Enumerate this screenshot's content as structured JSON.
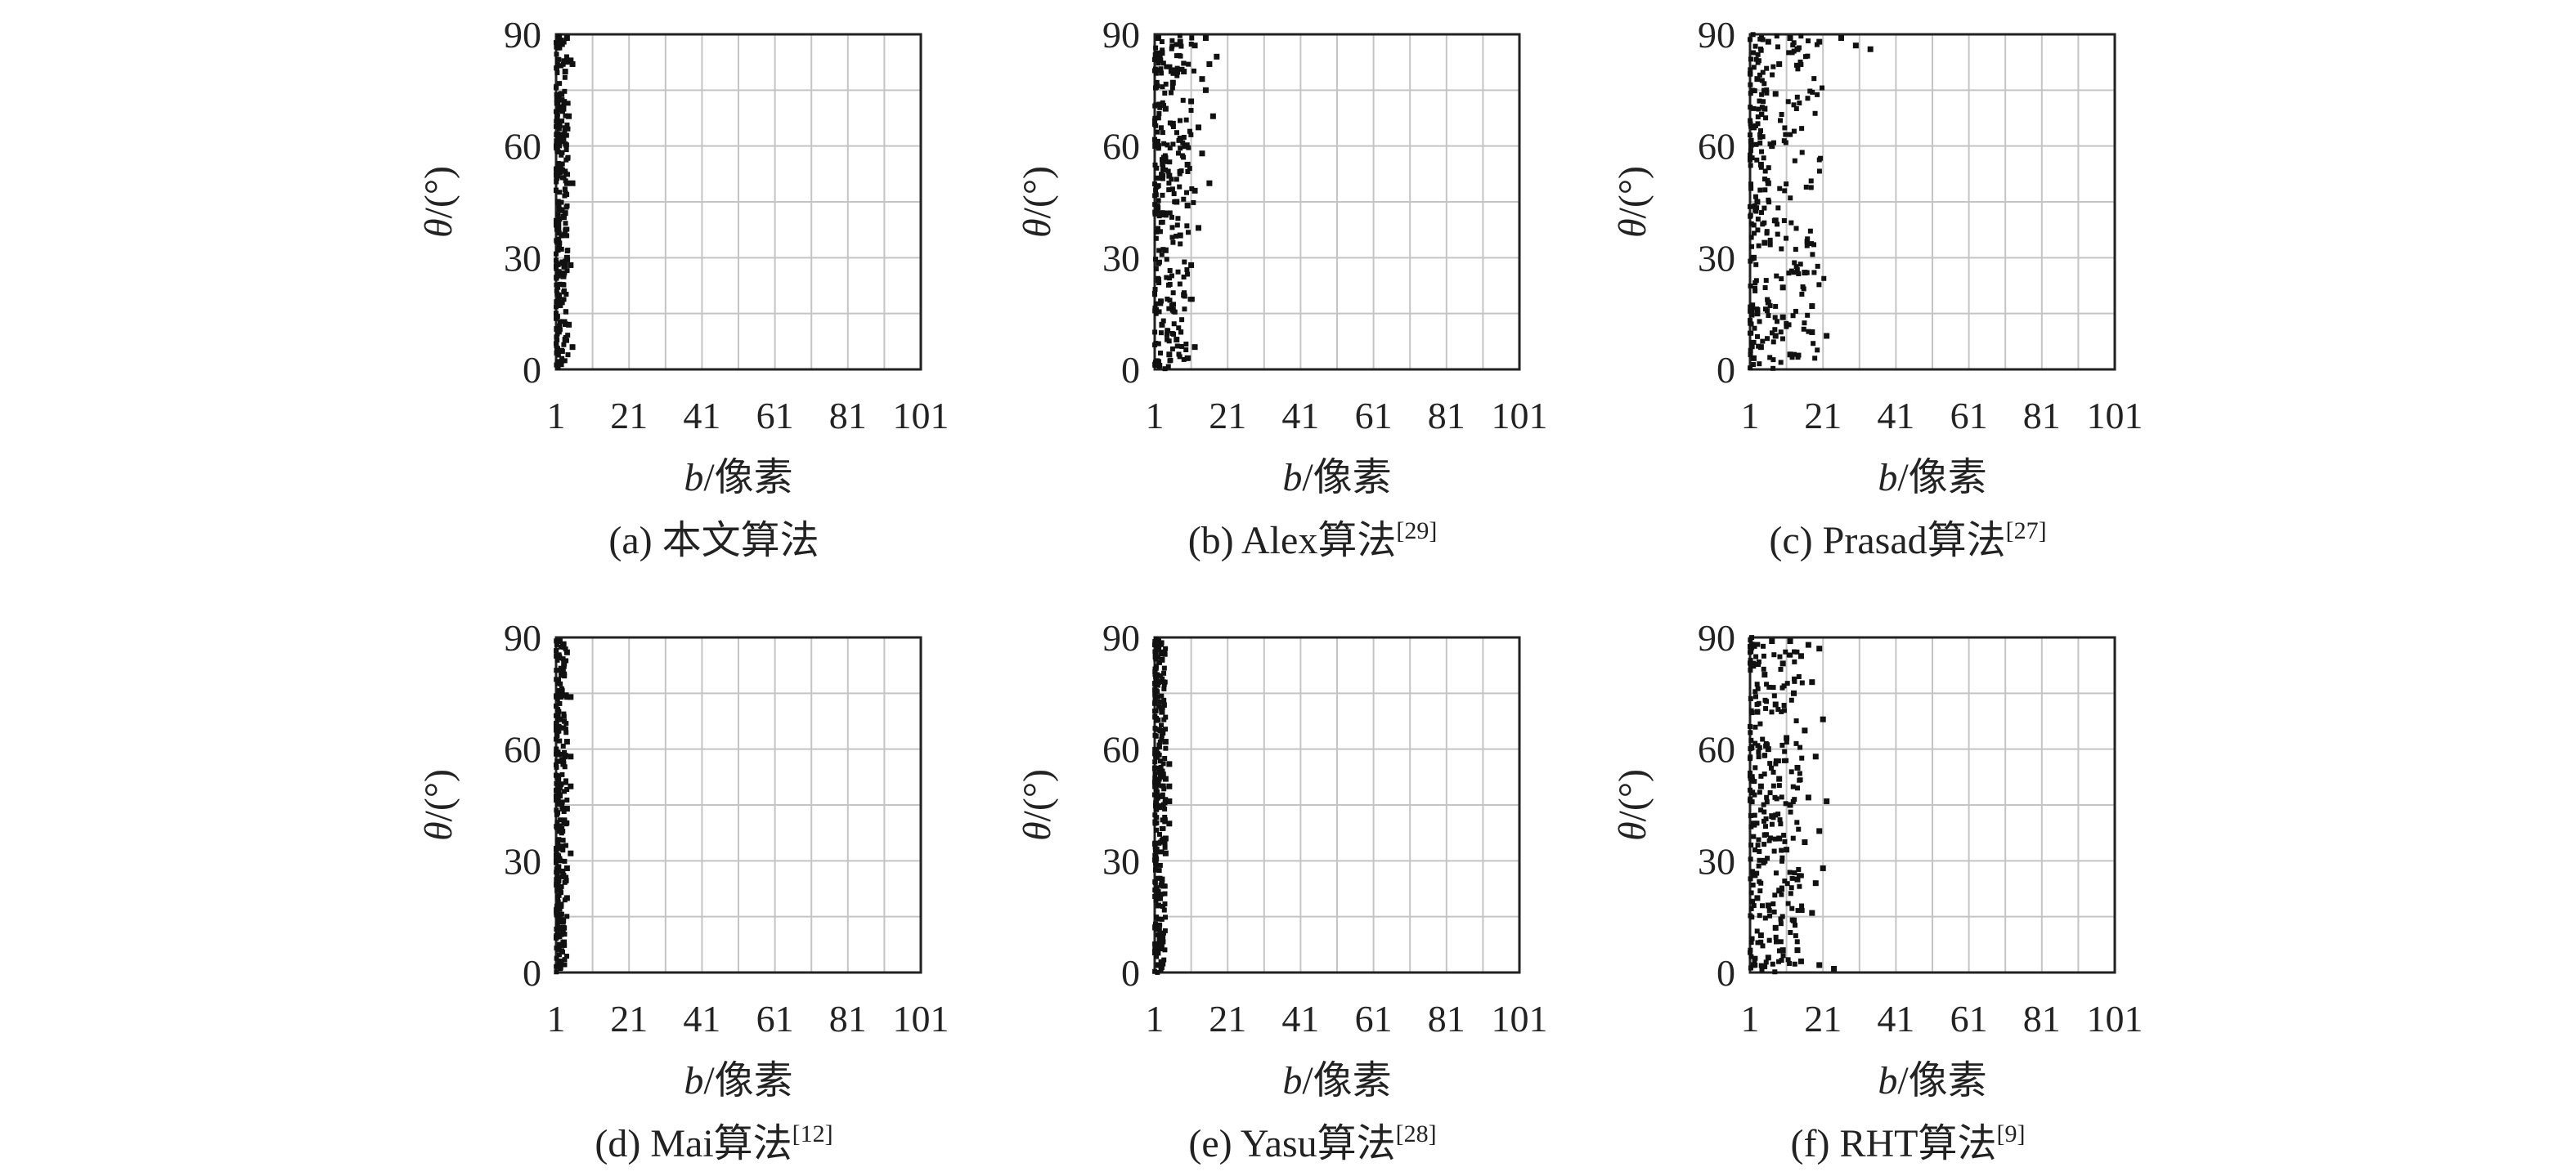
{
  "chart_data": [
    {
      "type": "scatter",
      "caption": "(a) 本文算法",
      "caption_sup": "",
      "xlabel_var": "b",
      "xlabel_unit": "/像素",
      "ylabel_var": "θ",
      "ylabel_unit": "/(°)",
      "xticks": [
        "1",
        "21",
        "41",
        "61",
        "81",
        "101"
      ],
      "yticks": [
        "0",
        "30",
        "60",
        "90"
      ],
      "xlim": [
        1,
        101
      ],
      "ylim": [
        0,
        90
      ],
      "grid": true,
      "points_summary": "dense vertical band of points at b ≈ 1–5 spanning θ 0–90",
      "points": [
        [
          1.5,
          2
        ],
        [
          2.5,
          5
        ],
        [
          3.5,
          8
        ],
        [
          4.5,
          12
        ],
        [
          2,
          18
        ],
        [
          3,
          25
        ],
        [
          4,
          30
        ],
        [
          2.5,
          36
        ],
        [
          3.5,
          42
        ],
        [
          4,
          50
        ],
        [
          2,
          55
        ],
        [
          3,
          62
        ],
        [
          4.5,
          68
        ],
        [
          2.5,
          74
        ],
        [
          3.5,
          80
        ],
        [
          5,
          83
        ],
        [
          2,
          88
        ],
        [
          4,
          89
        ],
        [
          5.5,
          82
        ],
        [
          5.5,
          50
        ],
        [
          5,
          28
        ],
        [
          5.5,
          6
        ],
        [
          1.5,
          45
        ],
        [
          3,
          70
        ]
      ]
    },
    {
      "type": "scatter",
      "caption": "(b) Alex算法",
      "caption_sup": "[29]",
      "xlabel_var": "b",
      "xlabel_unit": "/像素",
      "ylabel_var": "θ",
      "ylabel_unit": "/(°)",
      "xticks": [
        "1",
        "21",
        "41",
        "61",
        "81",
        "101"
      ],
      "yticks": [
        "0",
        "30",
        "60",
        "90"
      ],
      "xlim": [
        1,
        101
      ],
      "ylim": [
        0,
        90
      ],
      "grid": true,
      "points_summary": "points spread over b ≈ 1–18 for θ 40–90 and b ≈ 1–8 for lower θ",
      "points": [
        [
          2,
          2
        ],
        [
          5,
          4
        ],
        [
          7,
          8
        ],
        [
          10,
          3
        ],
        [
          12,
          6
        ],
        [
          3,
          12
        ],
        [
          6,
          16
        ],
        [
          9,
          20
        ],
        [
          2,
          24
        ],
        [
          11,
          28
        ],
        [
          4,
          32
        ],
        [
          8,
          36
        ],
        [
          13,
          38
        ],
        [
          3,
          42
        ],
        [
          7,
          45
        ],
        [
          12,
          48
        ],
        [
          16,
          50
        ],
        [
          5,
          52
        ],
        [
          10,
          55
        ],
        [
          14,
          58
        ],
        [
          2,
          60
        ],
        [
          8,
          62
        ],
        [
          13,
          65
        ],
        [
          17,
          68
        ],
        [
          4,
          70
        ],
        [
          11,
          72
        ],
        [
          15,
          75
        ],
        [
          6,
          77
        ],
        [
          9,
          80
        ],
        [
          16,
          82
        ],
        [
          18,
          84
        ],
        [
          3,
          85
        ],
        [
          12,
          87
        ],
        [
          8,
          88
        ],
        [
          15,
          89
        ],
        [
          2,
          89
        ],
        [
          6,
          66
        ],
        [
          10,
          44
        ],
        [
          14,
          78
        ]
      ]
    },
    {
      "type": "scatter",
      "caption": "(c) Prasad算法",
      "caption_sup": "[27]",
      "xlabel_var": "b",
      "xlabel_unit": "/像素",
      "ylabel_var": "θ",
      "ylabel_unit": "/(°)",
      "xticks": [
        "1",
        "21",
        "41",
        "61",
        "81",
        "101"
      ],
      "yticks": [
        "0",
        "30",
        "60",
        "90"
      ],
      "xlim": [
        1,
        101
      ],
      "ylim": [
        0,
        90
      ],
      "grid": true,
      "points_summary": "dense band at b ≈ 1–8 with scattered outliers up to b ≈ 36 near θ 85–90",
      "points": [
        [
          2,
          3
        ],
        [
          4,
          6
        ],
        [
          8,
          9
        ],
        [
          12,
          4
        ],
        [
          18,
          10
        ],
        [
          22,
          9
        ],
        [
          3,
          15
        ],
        [
          6,
          18
        ],
        [
          10,
          22
        ],
        [
          16,
          26
        ],
        [
          2,
          30
        ],
        [
          5,
          34
        ],
        [
          8,
          40
        ],
        [
          3,
          45
        ],
        [
          6,
          50
        ],
        [
          4,
          55
        ],
        [
          7,
          60
        ],
        [
          2,
          65
        ],
        [
          5,
          70
        ],
        [
          8,
          74
        ],
        [
          3,
          78
        ],
        [
          9,
          82
        ],
        [
          14,
          86
        ],
        [
          20,
          88
        ],
        [
          26,
          89
        ],
        [
          30,
          87
        ],
        [
          34,
          86
        ],
        [
          12,
          89
        ],
        [
          6,
          88
        ],
        [
          18,
          17
        ],
        [
          10,
          14
        ]
      ]
    },
    {
      "type": "scatter",
      "caption": "(d) Mai算法",
      "caption_sup": "[12]",
      "xlabel_var": "b",
      "xlabel_unit": "/像素",
      "ylabel_var": "θ",
      "ylabel_unit": "/(°)",
      "xticks": [
        "1",
        "21",
        "41",
        "61",
        "81",
        "101"
      ],
      "yticks": [
        "0",
        "30",
        "60",
        "90"
      ],
      "xlim": [
        1,
        101
      ],
      "ylim": [
        0,
        90
      ],
      "grid": true,
      "points_summary": "dense vertical band at b ≈ 1–5 spanning θ 0–90",
      "points": [
        [
          2,
          3
        ],
        [
          3,
          8
        ],
        [
          2,
          14
        ],
        [
          4,
          20
        ],
        [
          3,
          26
        ],
        [
          5,
          32
        ],
        [
          2,
          38
        ],
        [
          4,
          44
        ],
        [
          5,
          50
        ],
        [
          3,
          56
        ],
        [
          4,
          62
        ],
        [
          2,
          68
        ],
        [
          5,
          74
        ],
        [
          3,
          80
        ],
        [
          4,
          86
        ],
        [
          2,
          89
        ],
        [
          5,
          58
        ],
        [
          4,
          28
        ],
        [
          3,
          12
        ]
      ]
    },
    {
      "type": "scatter",
      "caption": "(e) Yasu算法",
      "caption_sup": "[28]",
      "xlabel_var": "b",
      "xlabel_unit": "/像素",
      "ylabel_var": "θ",
      "ylabel_unit": "/(°)",
      "xticks": [
        "1",
        "21",
        "41",
        "61",
        "81",
        "101"
      ],
      "yticks": [
        "0",
        "30",
        "60",
        "90"
      ],
      "xlim": [
        1,
        101
      ],
      "ylim": [
        0,
        90
      ],
      "grid": true,
      "points_summary": "narrow vertical band at b ≈ 1–5, widest near θ 40–60",
      "points": [
        [
          2,
          2
        ],
        [
          3,
          10
        ],
        [
          2,
          18
        ],
        [
          3,
          25
        ],
        [
          4,
          32
        ],
        [
          5,
          40
        ],
        [
          5,
          46
        ],
        [
          4,
          52
        ],
        [
          5,
          56
        ],
        [
          4,
          62
        ],
        [
          3,
          70
        ],
        [
          2,
          78
        ],
        [
          3,
          84
        ],
        [
          2,
          89
        ],
        [
          4,
          36
        ],
        [
          5,
          50
        ]
      ]
    },
    {
      "type": "scatter",
      "caption": "(f) RHT算法",
      "caption_sup": "[9]",
      "xlabel_var": "b",
      "xlabel_unit": "/像素",
      "ylabel_var": "θ",
      "ylabel_unit": "/(°)",
      "xticks": [
        "1",
        "21",
        "41",
        "61",
        "81",
        "101"
      ],
      "yticks": [
        "0",
        "30",
        "60",
        "90"
      ],
      "xlim": [
        1,
        101
      ],
      "ylim": [
        0,
        90
      ],
      "grid": true,
      "points_summary": "wide dense cloud at b ≈ 1–20 with outliers to b ≈ 24, spanning θ 0–90",
      "points": [
        [
          2,
          2
        ],
        [
          6,
          4
        ],
        [
          10,
          6
        ],
        [
          15,
          3
        ],
        [
          20,
          2
        ],
        [
          24,
          1
        ],
        [
          4,
          10
        ],
        [
          8,
          12
        ],
        [
          13,
          14
        ],
        [
          18,
          16
        ],
        [
          3,
          20
        ],
        [
          9,
          22
        ],
        [
          14,
          25
        ],
        [
          21,
          28
        ],
        [
          5,
          30
        ],
        [
          11,
          33
        ],
        [
          16,
          35
        ],
        [
          20,
          38
        ],
        [
          2,
          40
        ],
        [
          7,
          42
        ],
        [
          12,
          45
        ],
        [
          17,
          47
        ],
        [
          22,
          46
        ],
        [
          4,
          50
        ],
        [
          9,
          52
        ],
        [
          14,
          55
        ],
        [
          19,
          58
        ],
        [
          6,
          60
        ],
        [
          11,
          63
        ],
        [
          16,
          65
        ],
        [
          21,
          68
        ],
        [
          3,
          70
        ],
        [
          8,
          72
        ],
        [
          13,
          75
        ],
        [
          18,
          78
        ],
        [
          5,
          80
        ],
        [
          10,
          83
        ],
        [
          15,
          85
        ],
        [
          20,
          87
        ],
        [
          2,
          88
        ],
        [
          7,
          89
        ],
        [
          12,
          89
        ],
        [
          17,
          88
        ],
        [
          9,
          36
        ],
        [
          6,
          18
        ],
        [
          14,
          6
        ],
        [
          19,
          24
        ]
      ]
    }
  ]
}
